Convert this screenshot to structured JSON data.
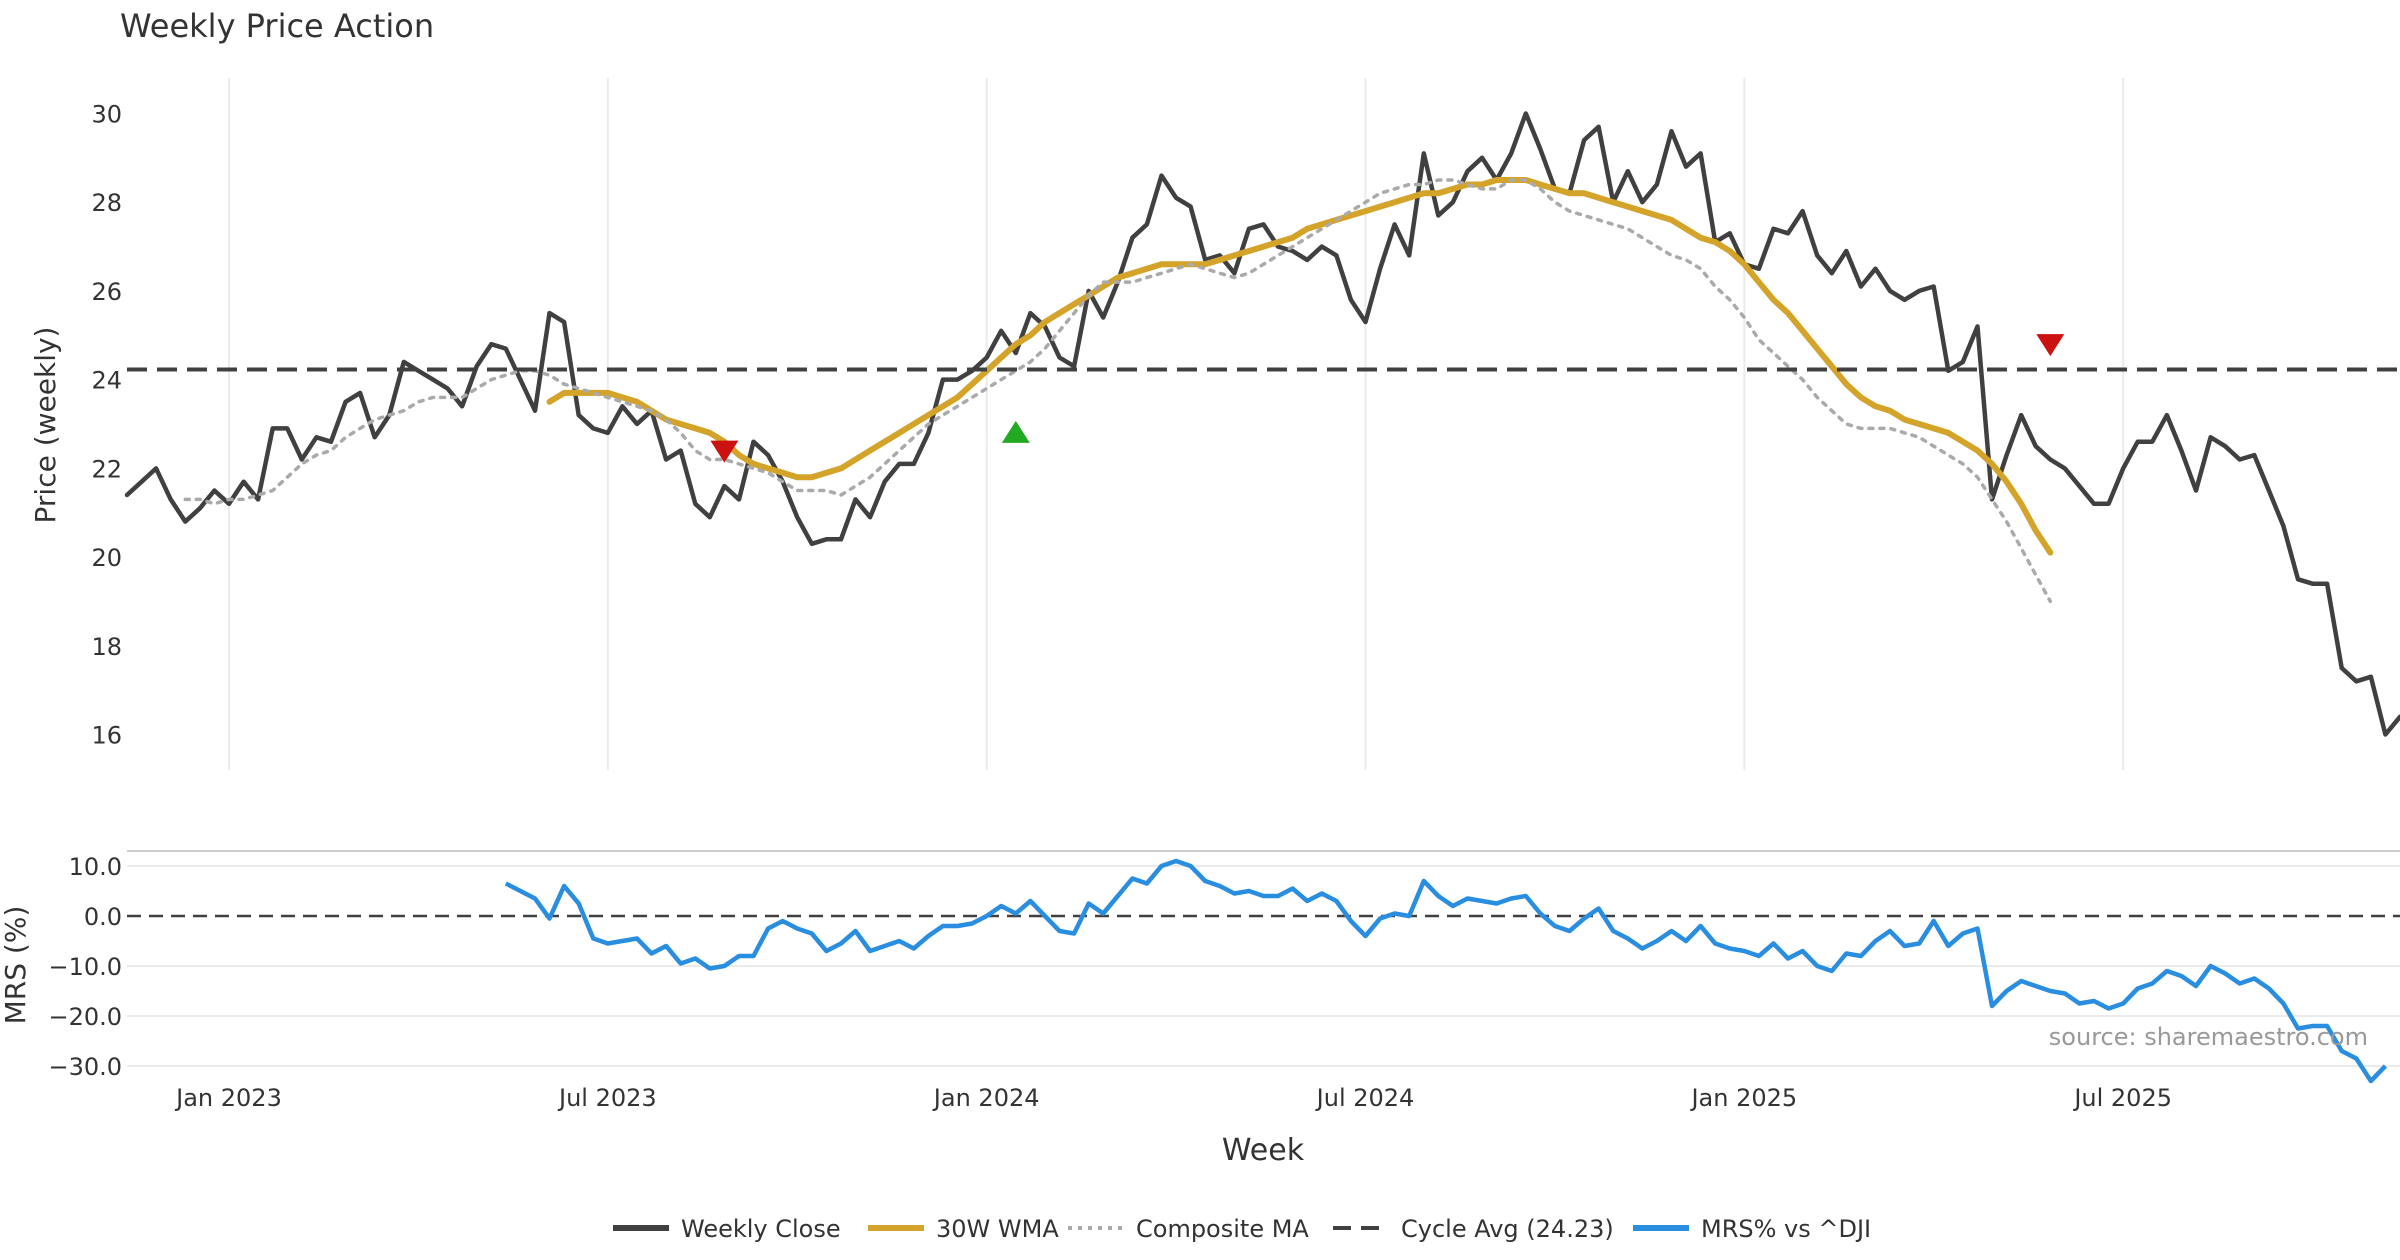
{
  "chart_data": [
    {
      "type": "line",
      "title": "Weekly Price Action",
      "ylabel": "Price (weekly)",
      "ylim": [
        15.2,
        30.8
      ],
      "yticks": [
        16,
        18,
        20,
        22,
        24,
        26,
        28,
        30
      ],
      "grid": "vertical",
      "cycle_avg": 24.23,
      "series": [
        {
          "name": "Weekly Close",
          "color": "#404040",
          "start_week": 0,
          "values": [
            21.4,
            21.7,
            22.0,
            21.3,
            20.8,
            21.1,
            21.5,
            21.2,
            21.7,
            21.3,
            22.9,
            22.9,
            22.2,
            22.7,
            22.6,
            23.5,
            23.7,
            22.7,
            23.2,
            24.4,
            24.2,
            24.0,
            23.8,
            23.4,
            24.3,
            24.8,
            24.7,
            24.0,
            23.3,
            25.5,
            25.3,
            23.2,
            22.9,
            22.8,
            23.4,
            23.0,
            23.3,
            22.2,
            22.4,
            21.2,
            20.9,
            21.6,
            21.3,
            22.6,
            22.3,
            21.7,
            20.9,
            20.3,
            20.4,
            20.4,
            21.3,
            20.9,
            21.7,
            22.1,
            22.1,
            22.8,
            24.0,
            24.0,
            24.2,
            24.5,
            25.1,
            24.6,
            25.5,
            25.2,
            24.5,
            24.3,
            26.0,
            25.4,
            26.2,
            27.2,
            27.5,
            28.6,
            28.1,
            27.9,
            26.7,
            26.8,
            26.4,
            27.4,
            27.5,
            27.0,
            26.9,
            26.7,
            27.0,
            26.8,
            25.8,
            25.3,
            26.5,
            27.5,
            26.8,
            29.1,
            27.7,
            28.0,
            28.7,
            29.0,
            28.5,
            29.1,
            30.0,
            29.2,
            28.3,
            28.2,
            29.4,
            29.7,
            28.0,
            28.7,
            28.0,
            28.4,
            29.6,
            28.8,
            29.1,
            27.1,
            27.3,
            26.6,
            26.5,
            27.4,
            27.3,
            27.8,
            26.8,
            26.4,
            26.9,
            26.1,
            26.5,
            26.0,
            25.8,
            26.0,
            26.1,
            24.2,
            24.4,
            25.2,
            21.3,
            22.3,
            23.2,
            22.5,
            22.2,
            22.0,
            21.6,
            21.2,
            21.2,
            22.0,
            22.6,
            22.6,
            23.2,
            22.4,
            21.5,
            22.7,
            22.5,
            22.2,
            22.3,
            21.5,
            20.7,
            19.5,
            19.4,
            19.4,
            17.5,
            17.2,
            17.3,
            16.0,
            16.4
          ]
        },
        {
          "name": "30W WMA",
          "color": "#d4a32a",
          "start_week": 29,
          "values": [
            23.5,
            23.7,
            23.7,
            23.7,
            23.7,
            23.6,
            23.5,
            23.3,
            23.1,
            23.0,
            22.9,
            22.8,
            22.6,
            22.3,
            22.1,
            22.0,
            21.9,
            21.8,
            21.8,
            21.9,
            22.0,
            22.2,
            22.4,
            22.6,
            22.8,
            23.0,
            23.2,
            23.4,
            23.6,
            23.9,
            24.2,
            24.5,
            24.8,
            25.0,
            25.3,
            25.5,
            25.7,
            25.9,
            26.1,
            26.3,
            26.4,
            26.5,
            26.6,
            26.6,
            26.6,
            26.6,
            26.7,
            26.8,
            26.9,
            27.0,
            27.1,
            27.2,
            27.4,
            27.5,
            27.6,
            27.7,
            27.8,
            27.9,
            28.0,
            28.1,
            28.2,
            28.2,
            28.3,
            28.4,
            28.4,
            28.5,
            28.5,
            28.5,
            28.4,
            28.3,
            28.2,
            28.2,
            28.1,
            28.0,
            27.9,
            27.8,
            27.7,
            27.6,
            27.4,
            27.2,
            27.1,
            26.9,
            26.6,
            26.2,
            25.8,
            25.5,
            25.1,
            24.7,
            24.3,
            23.9,
            23.6,
            23.4,
            23.3,
            23.1,
            23.0,
            22.9,
            22.8,
            22.6,
            22.4,
            22.1,
            21.7,
            21.2,
            20.6,
            20.1
          ]
        },
        {
          "name": "Composite MA",
          "color": "#aaaaaa",
          "start_week": 4,
          "values": [
            21.3,
            21.3,
            21.2,
            21.3,
            21.3,
            21.4,
            21.5,
            21.8,
            22.1,
            22.3,
            22.4,
            22.7,
            22.9,
            23.1,
            23.2,
            23.3,
            23.5,
            23.6,
            23.6,
            23.6,
            23.8,
            24.0,
            24.1,
            24.2,
            24.2,
            24.1,
            23.9,
            23.8,
            23.7,
            23.6,
            23.5,
            23.4,
            23.3,
            23.1,
            22.8,
            22.4,
            22.2,
            22.2,
            22.1,
            22.0,
            21.9,
            21.7,
            21.5,
            21.5,
            21.5,
            21.4,
            21.6,
            21.8,
            22.1,
            22.4,
            22.7,
            23.0,
            23.2,
            23.4,
            23.6,
            23.8,
            24.0,
            24.2,
            24.4,
            24.7,
            25.1,
            25.5,
            25.9,
            26.2,
            26.2,
            26.2,
            26.3,
            26.4,
            26.5,
            26.6,
            26.5,
            26.4,
            26.3,
            26.4,
            26.6,
            26.8,
            27.0,
            27.2,
            27.4,
            27.6,
            27.8,
            28.0,
            28.2,
            28.3,
            28.4,
            28.4,
            28.5,
            28.5,
            28.4,
            28.3,
            28.3,
            28.5,
            28.5,
            28.3,
            28.0,
            27.8,
            27.7,
            27.6,
            27.5,
            27.4,
            27.2,
            27.0,
            26.8,
            26.7,
            26.5,
            26.1,
            25.8,
            25.4,
            24.9,
            24.6,
            24.3,
            24.0,
            23.6,
            23.3,
            23.0,
            22.9,
            22.9,
            22.9,
            22.8,
            22.7,
            22.5,
            22.3,
            22.1,
            21.8,
            21.3,
            20.8,
            20.2,
            19.6,
            19.0
          ]
        },
        {
          "name": "Cycle Avg (24.23)",
          "color": "#404040",
          "style": "dashed",
          "value": 24.23
        }
      ],
      "markers": [
        {
          "type": "sell",
          "week": 41,
          "value": 22.4,
          "color": "#cc1111"
        },
        {
          "type": "buy",
          "week": 61,
          "value": 22.8,
          "color": "#22aa22"
        },
        {
          "type": "sell",
          "week": 132,
          "value": 24.8,
          "color": "#cc1111"
        }
      ]
    },
    {
      "type": "line",
      "ylabel": "MRS (%)",
      "xlabel": "Week",
      "ylim": [
        -34,
        13
      ],
      "yticks": [
        10,
        0,
        -10,
        -20,
        -30
      ],
      "ytick_labels": [
        "10.0",
        "0.0",
        "−10.0",
        "−20.0",
        "−30.0"
      ],
      "zero_line": "dashed",
      "series": [
        {
          "name": "MRS% vs ^DJI",
          "color": "#2a8ee0",
          "start_week": 26,
          "values": [
            6.5,
            5.0,
            3.5,
            -0.5,
            6.0,
            2.5,
            -4.5,
            -5.5,
            -5.0,
            -4.5,
            -7.5,
            -6.0,
            -9.5,
            -8.5,
            -10.5,
            -10.0,
            -8.0,
            -8.0,
            -2.5,
            -1.0,
            -2.5,
            -3.5,
            -7.0,
            -5.5,
            -3.0,
            -7.0,
            -6.0,
            -5.0,
            -6.5,
            -4.0,
            -2.0,
            -2.0,
            -1.5,
            0.0,
            2.0,
            0.5,
            3.0,
            0.0,
            -3.0,
            -3.5,
            2.5,
            0.5,
            4.0,
            7.5,
            6.5,
            10.0,
            11.0,
            10.0,
            7.0,
            6.0,
            4.5,
            5.0,
            4.0,
            4.0,
            5.5,
            3.0,
            4.5,
            3.0,
            -1.0,
            -4.0,
            -0.5,
            0.5,
            0.0,
            7.0,
            4.0,
            2.0,
            3.5,
            3.0,
            2.5,
            3.5,
            4.0,
            0.5,
            -2.0,
            -3.0,
            -0.5,
            1.5,
            -3.0,
            -4.5,
            -6.5,
            -5.0,
            -3.0,
            -5.0,
            -2.0,
            -5.5,
            -6.5,
            -7.0,
            -8.0,
            -5.5,
            -8.5,
            -7.0,
            -10.0,
            -11.0,
            -7.5,
            -8.0,
            -5.0,
            -3.0,
            -6.0,
            -5.5,
            -1.0,
            -6.0,
            -3.5,
            -2.5,
            -18.0,
            -15.0,
            -13.0,
            -14.0,
            -15.0,
            -15.5,
            -17.5,
            -17.0,
            -18.5,
            -17.5,
            -14.5,
            -13.5,
            -11.0,
            -12.0,
            -14.0,
            -10.0,
            -11.5,
            -13.5,
            -12.5,
            -14.5,
            -17.5,
            -22.5,
            -22.0,
            -22.0,
            -27.0,
            -28.5,
            -33.0,
            -30.0
          ]
        }
      ]
    }
  ],
  "x_axis": {
    "label": "Week",
    "num_weeks": 157,
    "ticks": [
      {
        "label": "Jan 2023",
        "week": 7
      },
      {
        "label": "Jul 2023",
        "week": 33
      },
      {
        "label": "Jan 2024",
        "week": 59
      },
      {
        "label": "Jul 2024",
        "week": 85
      },
      {
        "label": "Jan 2025",
        "week": 111
      },
      {
        "label": "Jul 2025",
        "week": 137
      }
    ]
  },
  "legend": {
    "position": "bottom-center",
    "items": [
      {
        "label": "Weekly Close",
        "color": "#404040",
        "style": "solid"
      },
      {
        "label": "30W WMA",
        "color": "#d4a32a",
        "style": "solid"
      },
      {
        "label": "Composite MA",
        "color": "#aaaaaa",
        "style": "dotted"
      },
      {
        "label": "Cycle Avg (24.23)",
        "color": "#404040",
        "style": "dashed"
      },
      {
        "label": "MRS% vs ^DJI",
        "color": "#2a8ee0",
        "style": "solid"
      }
    ]
  },
  "source": "source: sharemaestro.com"
}
